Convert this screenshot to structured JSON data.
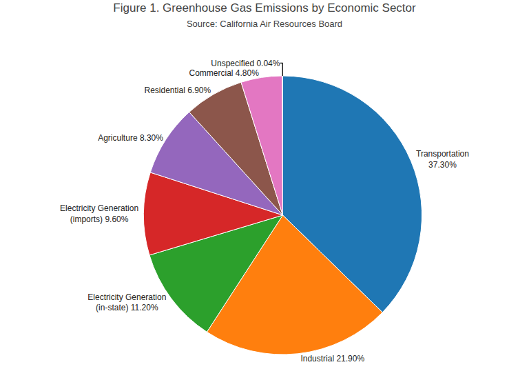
{
  "chart_data": {
    "type": "pie",
    "title": "Figure 1. Greenhouse Gas Emissions by Economic Sector",
    "subtitle": "Source: California Air Resources Board",
    "values": [
      37.3,
      21.9,
      11.2,
      9.6,
      8.3,
      6.9,
      4.8,
      0.04
    ],
    "value_labels": [
      "Transportation\n37.30%",
      "Industrial 21.90%",
      "Electricity Generation\n(in-state) 11.20%",
      "Electricity Generation\n(imports) 9.60%",
      "Agriculture 8.30%",
      "Residential 6.90%",
      "Commercial 4.80%",
      "Unspecified 0.04%"
    ],
    "data_labels": true
  }
}
